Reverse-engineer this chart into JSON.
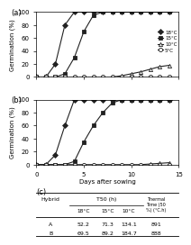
{
  "panel_a": {
    "label": "(a)",
    "series": [
      {
        "temp": "18°C",
        "x": [
          0,
          1,
          2,
          3,
          4,
          5,
          6,
          7,
          8,
          9,
          10,
          11,
          12,
          13,
          14
        ],
        "y": [
          0,
          0,
          20,
          80,
          100,
          100,
          100,
          100,
          100,
          100,
          100,
          100,
          100,
          100,
          100
        ],
        "marker": "D",
        "linestyle": "-",
        "color": "#222222"
      },
      {
        "temp": "15°C",
        "x": [
          0,
          1,
          2,
          3,
          4,
          5,
          6,
          7,
          8,
          9,
          10,
          11,
          12,
          13,
          14
        ],
        "y": [
          0,
          0,
          0,
          5,
          30,
          70,
          95,
          100,
          100,
          100,
          100,
          100,
          100,
          100,
          100
        ],
        "marker": "s",
        "linestyle": "-",
        "color": "#222222"
      },
      {
        "temp": "10°C",
        "x": [
          0,
          1,
          2,
          3,
          4,
          5,
          6,
          7,
          8,
          9,
          10,
          11,
          12,
          13,
          14
        ],
        "y": [
          0,
          0,
          0,
          0,
          0,
          0,
          0,
          0,
          0,
          2,
          5,
          8,
          12,
          16,
          18
        ],
        "marker": "^",
        "linestyle": "-",
        "color": "#222222"
      },
      {
        "temp": "5°C",
        "x": [
          0,
          1,
          2,
          3,
          4,
          5,
          6,
          7,
          8,
          9,
          10,
          11,
          12,
          13,
          14
        ],
        "y": [
          0,
          0,
          0,
          0,
          0,
          0,
          0,
          0,
          0,
          0,
          0,
          0,
          0,
          0,
          0
        ],
        "marker": "o",
        "linestyle": "-",
        "color": "#222222"
      }
    ]
  },
  "panel_b": {
    "label": "(b)",
    "series": [
      {
        "temp": "18°C",
        "x": [
          0,
          1,
          2,
          3,
          4,
          5,
          6,
          7,
          8,
          9,
          10,
          11,
          12,
          13,
          14
        ],
        "y": [
          0,
          0,
          15,
          60,
          100,
          100,
          100,
          100,
          100,
          100,
          100,
          100,
          100,
          100,
          100
        ],
        "marker": "D",
        "linestyle": "-",
        "color": "#222222"
      },
      {
        "temp": "15°C",
        "x": [
          0,
          1,
          2,
          3,
          4,
          5,
          6,
          7,
          8,
          9,
          10,
          11,
          12,
          13,
          14
        ],
        "y": [
          0,
          0,
          0,
          0,
          5,
          35,
          60,
          80,
          95,
          100,
          100,
          100,
          100,
          100,
          100
        ],
        "marker": "s",
        "linestyle": "-",
        "color": "#222222"
      },
      {
        "temp": "10°C",
        "x": [
          0,
          1,
          2,
          3,
          4,
          5,
          6,
          7,
          8,
          9,
          10,
          11,
          12,
          13,
          14
        ],
        "y": [
          0,
          0,
          0,
          0,
          0,
          0,
          0,
          0,
          0,
          0,
          0,
          0,
          1,
          2,
          3
        ],
        "marker": "^",
        "linestyle": "-",
        "color": "#222222"
      },
      {
        "temp": "5°C",
        "x": [
          0,
          1,
          2,
          3,
          4,
          5,
          6,
          7,
          8,
          9,
          10,
          11,
          12,
          13,
          14
        ],
        "y": [
          0,
          0,
          0,
          0,
          0,
          0,
          0,
          0,
          0,
          0,
          0,
          0,
          0,
          0,
          0
        ],
        "marker": "o",
        "linestyle": "-",
        "color": "#222222"
      }
    ]
  },
  "panel_c": {
    "label": "(c)",
    "subcolumns": [
      "18°C",
      "15°C",
      "10°C"
    ],
    "rows": [
      [
        "A",
        "52.2",
        "71.3",
        "134.1",
        "891"
      ],
      [
        "B",
        "69.5",
        "89.2",
        "184.7",
        "888"
      ]
    ]
  },
  "xlabel": "Days after sowing",
  "ylabel": "Germination (%)",
  "xlim": [
    0,
    15
  ],
  "ylim": [
    0,
    100
  ],
  "yticks": [
    0,
    20,
    40,
    60,
    80,
    100
  ],
  "xticks": [
    0,
    5,
    10,
    15
  ],
  "markers": [
    "D",
    "s",
    "^",
    "o"
  ],
  "temps": [
    "18°C",
    "15°C",
    "10°C",
    "5°C"
  ],
  "markersize": 3,
  "linewidth": 0.8,
  "background_color": "#ffffff"
}
